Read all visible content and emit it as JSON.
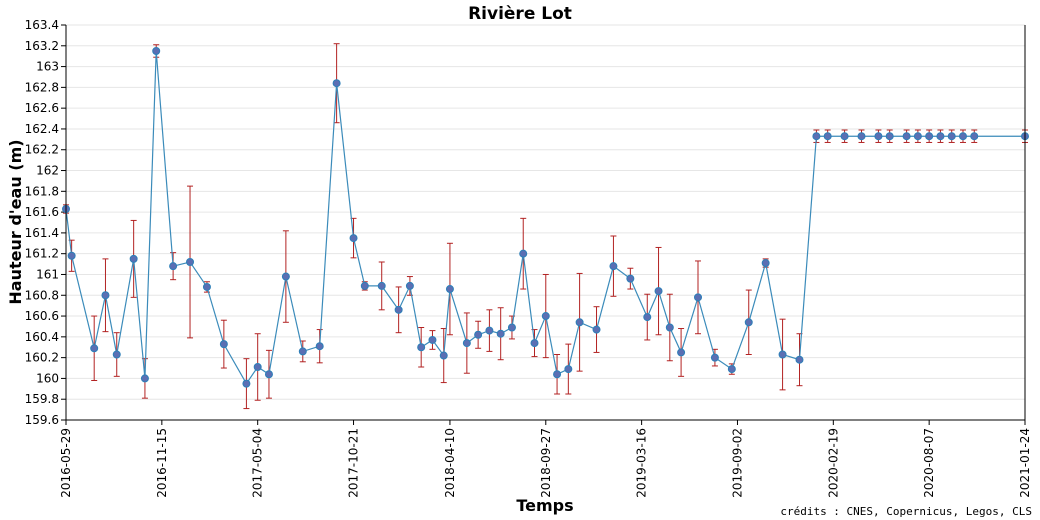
{
  "chart_data": {
    "type": "line",
    "title": "Rivière Lot",
    "xlabel": "Temps",
    "ylabel": "Hauteur d'eau (m)",
    "xlim": [
      "2016-05-29",
      "2021-01-24"
    ],
    "ylim": [
      159.6,
      163.4
    ],
    "yticks": [
      "159.6",
      "159.8",
      "160",
      "160.2",
      "160.4",
      "160.6",
      "160.8",
      "161",
      "161.2",
      "161.4",
      "161.6",
      "161.8",
      "162",
      "162.2",
      "162.4",
      "162.6",
      "162.8",
      "163",
      "163.2",
      "163.4"
    ],
    "xticks": [
      "2016-05-29",
      "2016-11-15",
      "2017-05-04",
      "2017-10-21",
      "2018-04-10",
      "2018-09-27",
      "2019-03-16",
      "2019-09-02",
      "2020-02-19",
      "2020-08-07",
      "2021-01-24"
    ],
    "grid": true,
    "colors": {
      "line": "#3b8bba",
      "marker_fill": "#5b6fb3",
      "marker_stroke": "#2c7fb8",
      "error_bar": "#b22222"
    },
    "series": [
      {
        "x": [
          "2016-05-29",
          "2016-06-08",
          "2016-07-18",
          "2016-08-07",
          "2016-08-27",
          "2016-09-26",
          "2016-10-16",
          "2016-11-05",
          "2016-12-05",
          "2017-01-04",
          "2017-02-03",
          "2017-03-05",
          "2017-04-14",
          "2017-05-04",
          "2017-05-24",
          "2017-06-23",
          "2017-07-23",
          "2017-08-22",
          "2017-09-21",
          "2017-10-21",
          "2017-11-10",
          "2017-12-10",
          "2018-01-09",
          "2018-01-29",
          "2018-02-18",
          "2018-03-10",
          "2018-03-30",
          "2018-04-10",
          "2018-05-10",
          "2018-05-30",
          "2018-06-19",
          "2018-07-09",
          "2018-07-29",
          "2018-08-18",
          "2018-09-07",
          "2018-09-27",
          "2018-10-17",
          "2018-11-06",
          "2018-11-26",
          "2018-12-26",
          "2019-01-25",
          "2019-02-24",
          "2019-03-26",
          "2019-04-15",
          "2019-05-05",
          "2019-05-25",
          "2019-06-24",
          "2019-07-24",
          "2019-08-23",
          "2019-09-22",
          "2019-10-22",
          "2019-11-21",
          "2019-12-21",
          "2020-01-20",
          "2020-02-09",
          "2020-03-10",
          "2020-04-09",
          "2020-05-09",
          "2020-05-29",
          "2020-06-28",
          "2020-07-18",
          "2020-08-07",
          "2020-08-27",
          "2020-09-16",
          "2020-10-06",
          "2020-10-26",
          "2021-01-24"
        ],
        "y": [
          161.63,
          161.18,
          160.29,
          160.8,
          160.23,
          161.15,
          160.0,
          163.15,
          161.08,
          161.12,
          160.88,
          160.33,
          159.95,
          160.11,
          160.04,
          160.98,
          160.26,
          160.31,
          162.84,
          161.35,
          160.89,
          160.89,
          160.66,
          160.89,
          160.3,
          160.37,
          160.22,
          160.86,
          160.34,
          160.42,
          160.46,
          160.43,
          160.49,
          161.2,
          160.34,
          160.6,
          160.04,
          160.09,
          160.54,
          160.47,
          161.08,
          160.96,
          160.59,
          160.84,
          160.49,
          160.25,
          160.78,
          160.2,
          160.09,
          160.54,
          161.11,
          160.23,
          160.18,
          162.33,
          162.33,
          162.33,
          162.33,
          162.33,
          162.33,
          162.33,
          162.33,
          162.33,
          162.33,
          162.33,
          162.33,
          162.33,
          162.33
        ],
        "y_err": [
          0.04,
          0.15,
          0.31,
          0.35,
          0.21,
          0.37,
          0.19,
          0.06,
          0.13,
          0.73,
          0.05,
          0.23,
          0.24,
          0.32,
          0.23,
          0.44,
          0.1,
          0.16,
          0.38,
          0.19,
          0.04,
          0.23,
          0.22,
          0.09,
          0.19,
          0.09,
          0.26,
          0.44,
          0.29,
          0.13,
          0.2,
          0.25,
          0.11,
          0.34,
          0.13,
          0.4,
          0.19,
          0.24,
          0.47,
          0.22,
          0.29,
          0.1,
          0.22,
          0.42,
          0.32,
          0.23,
          0.35,
          0.08,
          0.05,
          0.31,
          0.04,
          0.34,
          0.25,
          0.06,
          0.06,
          0.06,
          0.06,
          0.06,
          0.06,
          0.06,
          0.06,
          0.06,
          0.06,
          0.06,
          0.06,
          0.06,
          0.06
        ]
      }
    ]
  },
  "credits": "crédits : CNES, Copernicus, Legos, CLS"
}
